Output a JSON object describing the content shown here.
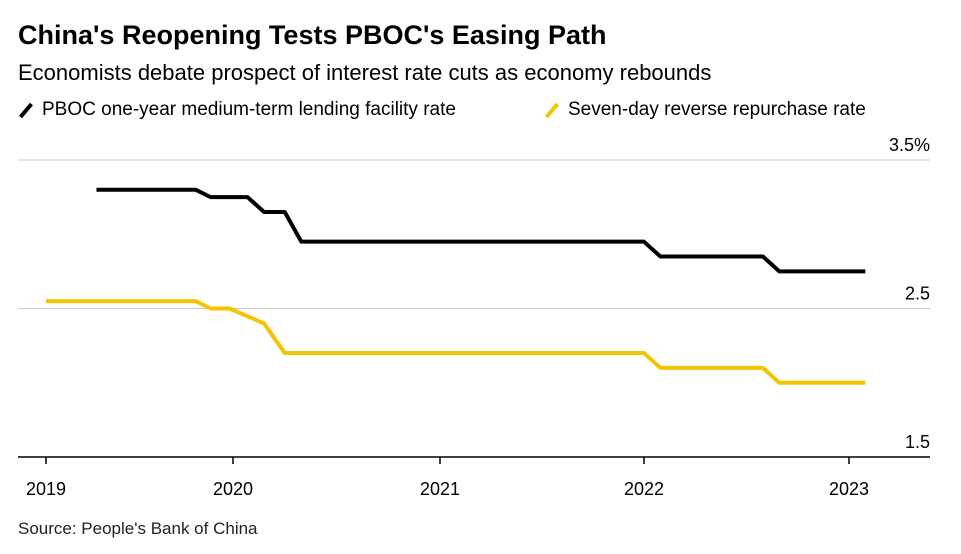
{
  "title": "China's Reopening Tests PBOC's Easing Path",
  "subtitle": "Economists debate prospect of interest rate cuts as economy rebounds",
  "source": "Source: People's Bank of China",
  "chart_data": {
    "type": "line",
    "title": "China's Reopening Tests PBOC's Easing Path",
    "xlabel": "",
    "ylabel": "%",
    "ylim": [
      1.5,
      3.5
    ],
    "yticks": [
      {
        "v": 3.5,
        "label": "3.5%"
      },
      {
        "v": 2.5,
        "label": "2.5"
      },
      {
        "v": 1.5,
        "label": "1.5"
      }
    ],
    "xticks": [
      {
        "v": 2019,
        "label": "2019"
      },
      {
        "v": 2020,
        "label": "2020"
      },
      {
        "v": 2021,
        "label": "2021"
      },
      {
        "v": 2022,
        "label": "2022"
      },
      {
        "v": 2023,
        "label": "2023"
      }
    ],
    "grid": true,
    "legend_position": "top-left",
    "series": [
      {
        "name": "PBOC one-year medium-term lending facility rate",
        "color": "#000000",
        "points": [
          [
            2019.27,
            3.3
          ],
          [
            2019.8,
            3.3
          ],
          [
            2019.88,
            3.25
          ],
          [
            2020.07,
            3.25
          ],
          [
            2020.15,
            3.15
          ],
          [
            2020.25,
            3.15
          ],
          [
            2020.33,
            2.95
          ],
          [
            2022.0,
            2.95
          ],
          [
            2022.08,
            2.85
          ],
          [
            2022.58,
            2.85
          ],
          [
            2022.66,
            2.75
          ],
          [
            2023.08,
            2.75
          ]
        ]
      },
      {
        "name": "Seven-day reverse repurchase rate",
        "color": "#f5c400",
        "points": [
          [
            2019.0,
            2.55
          ],
          [
            2019.8,
            2.55
          ],
          [
            2019.88,
            2.5
          ],
          [
            2019.98,
            2.5
          ],
          [
            2020.15,
            2.4
          ],
          [
            2020.25,
            2.2
          ],
          [
            2022.0,
            2.2
          ],
          [
            2022.08,
            2.1
          ],
          [
            2022.58,
            2.1
          ],
          [
            2022.66,
            2.0
          ],
          [
            2023.08,
            2.0
          ]
        ]
      }
    ]
  }
}
